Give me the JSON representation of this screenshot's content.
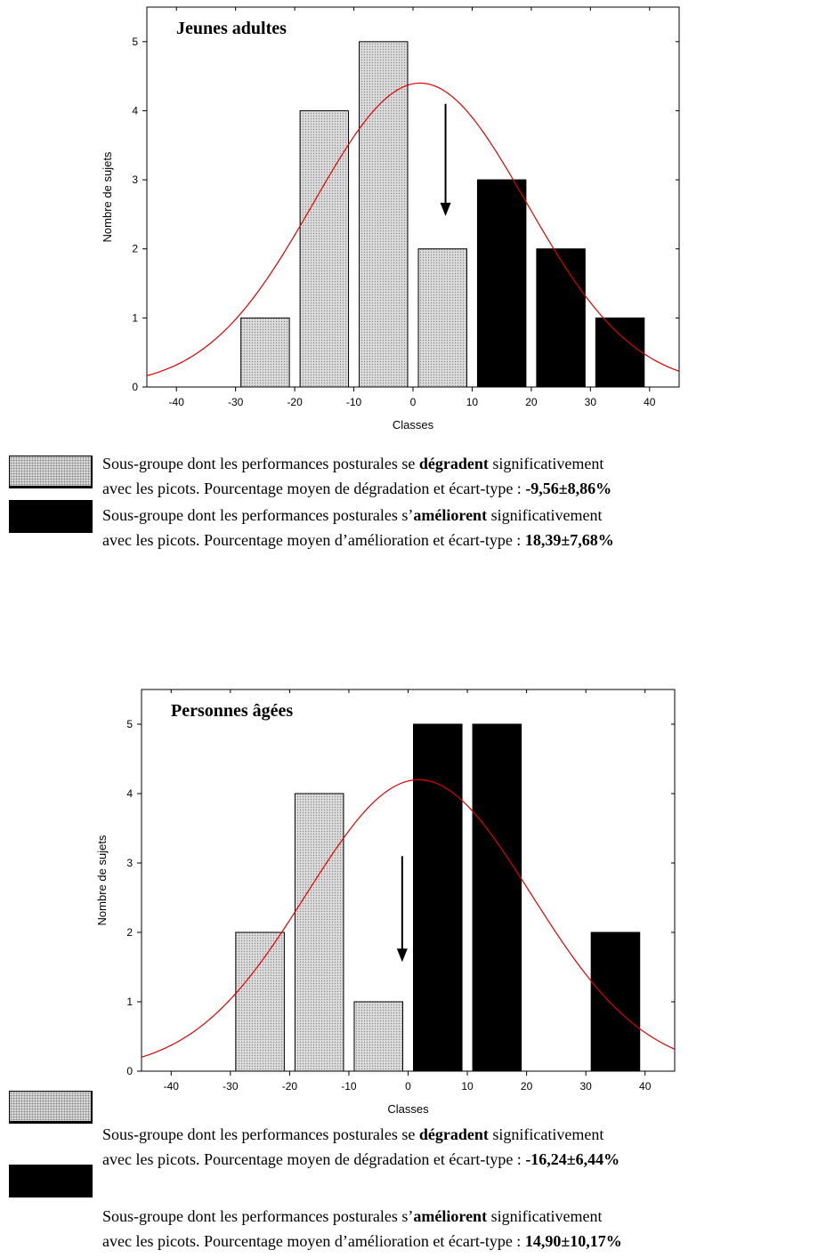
{
  "colors": {
    "degrade": "#d9d9d9",
    "ameliore": "#000000",
    "curve": "#e00000"
  },
  "chart_data": [
    {
      "type": "bar",
      "title": "Jeunes adultes",
      "xlabel": "Classes",
      "ylabel": "Nombre de sujets",
      "xlim": [
        -45,
        45
      ],
      "ylim": [
        0,
        5.5
      ],
      "xticks": [
        -40,
        -30,
        -20,
        -10,
        0,
        10,
        20,
        30,
        40
      ],
      "yticks": [
        0,
        1,
        2,
        3,
        4,
        5
      ],
      "bins": [
        {
          "x0": -30,
          "x1": -20,
          "value": 1,
          "group": "degrade"
        },
        {
          "x0": -20,
          "x1": -10,
          "value": 4,
          "group": "degrade"
        },
        {
          "x0": -10,
          "x1": 0,
          "value": 5,
          "group": "degrade"
        },
        {
          "x0": 0,
          "x1": 10,
          "value": 2,
          "group": "degrade"
        },
        {
          "x0": 10,
          "x1": 20,
          "value": 3,
          "group": "ameliore"
        },
        {
          "x0": 20,
          "x1": 30,
          "value": 2,
          "group": "ameliore"
        },
        {
          "x0": 30,
          "x1": 40,
          "value": 1,
          "group": "ameliore"
        }
      ],
      "normal_curve": {
        "mean": 1.2,
        "sd": 18,
        "peak": 4.4
      },
      "arrow": {
        "x": 5.5,
        "y_from": 4.1,
        "y_to": 2.5
      },
      "legend": [
        {
          "group": "degrade",
          "line1_pre": "Sous-groupe dont les performances posturales se ",
          "line1_bold": "dégradent",
          "line1_post": " significativement",
          "line2_pre": "avec les picots. Pourcentage moyen de dégradation et écart-type : ",
          "line2_bold": "-9,56±8,86%"
        },
        {
          "group": "ameliore",
          "line1_pre": "Sous-groupe dont les performances posturales s’",
          "line1_bold": "améliorent",
          "line1_post": " significativement",
          "line2_pre": "avec les picots. Pourcentage moyen d’amélioration et écart-type : ",
          "line2_bold": "18,39±7,68%"
        }
      ]
    },
    {
      "type": "bar",
      "title": "Personnes âgées",
      "xlabel": "Classes",
      "ylabel": "Nombre de sujets",
      "xlim": [
        -45,
        45
      ],
      "ylim": [
        0,
        5.5
      ],
      "xticks": [
        -40,
        -30,
        -20,
        -10,
        0,
        10,
        20,
        30,
        40
      ],
      "yticks": [
        0,
        1,
        2,
        3,
        4,
        5
      ],
      "bins": [
        {
          "x0": -40,
          "x1": -30,
          "value": 0,
          "group": "degrade"
        },
        {
          "x0": -30,
          "x1": -20,
          "value": 2,
          "group": "degrade"
        },
        {
          "x0": -20,
          "x1": -10,
          "value": 4,
          "group": "degrade"
        },
        {
          "x0": -10,
          "x1": 0,
          "value": 1,
          "group": "degrade"
        },
        {
          "x0": 0,
          "x1": 10,
          "value": 5,
          "group": "ameliore"
        },
        {
          "x0": 10,
          "x1": 20,
          "value": 5,
          "group": "ameliore"
        },
        {
          "x0": 20,
          "x1": 30,
          "value": 0,
          "group": "ameliore"
        },
        {
          "x0": 30,
          "x1": 40,
          "value": 2,
          "group": "ameliore"
        }
      ],
      "normal_curve": {
        "mean": 1.8,
        "sd": 19,
        "peak": 4.2
      },
      "arrow": {
        "x": -1,
        "y_from": 3.1,
        "y_to": 1.6
      },
      "legend": [
        {
          "group": "degrade",
          "line1_pre": "Sous-groupe dont les performances posturales se ",
          "line1_bold": "dégradent",
          "line1_post": " significativement",
          "line2_pre": "avec les picots. Pourcentage moyen de dégradation et écart-type : ",
          "line2_bold": "-16,24±6,44%"
        },
        {
          "group": "ameliore",
          "line1_pre": "Sous-groupe dont les performances posturales s’",
          "line1_bold": "améliorent",
          "line1_post": " significativement",
          "line2_pre": "avec les picots. Pourcentage moyen d’amélioration et écart-type : ",
          "line2_bold": "14,90±10,17%"
        }
      ]
    }
  ]
}
